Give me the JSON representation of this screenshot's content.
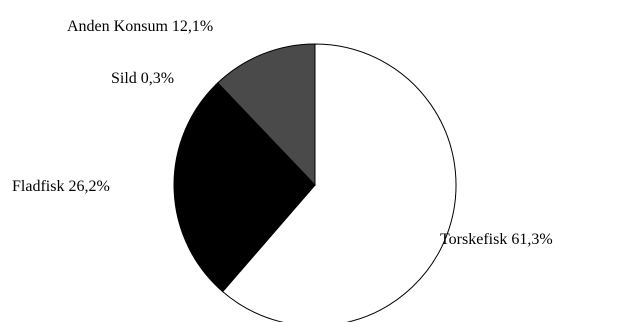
{
  "chart_data": {
    "type": "pie",
    "title": "",
    "legend": "none",
    "slices": [
      {
        "name": "Torskefisk",
        "value": 61.3,
        "label": "Torskefisk 61,3%",
        "color": "#ffffff"
      },
      {
        "name": "Fladfisk",
        "value": 26.2,
        "label": "Fladfisk 26,2%",
        "color": "#000000"
      },
      {
        "name": "Sild",
        "value": 0.3,
        "label": "Sild 0,3%",
        "color": "#000000"
      },
      {
        "name": "Anden Konsum",
        "value": 12.1,
        "label": "Anden Konsum 12,1%",
        "color": "#4a4a4a"
      }
    ]
  }
}
